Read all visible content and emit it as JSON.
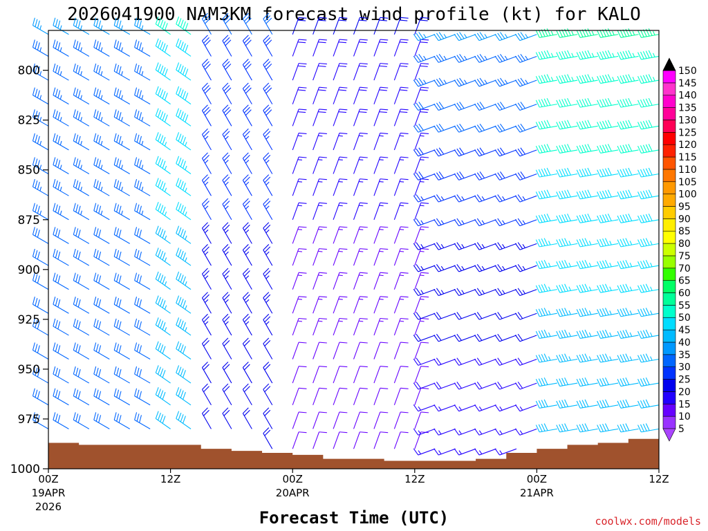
{
  "chart_data": {
    "type": "wind-barb-time-height",
    "title": "2026041900 NAM3KM forecast wind profile (kt) for KALO",
    "xlabel": "Forecast Time (UTC)",
    "ylabel": "",
    "credit": "coolwx.com/models",
    "units": "kt",
    "ylim": [
      1000,
      780
    ],
    "y_ticks": [
      800,
      825,
      850,
      875,
      900,
      925,
      950,
      975,
      1000
    ],
    "x_hours_range": [
      0,
      60
    ],
    "x_ticks": [
      {
        "hour": 0,
        "label": "00Z",
        "date": "19APR",
        "year": "2026"
      },
      {
        "hour": 12,
        "label": "12Z",
        "date": "",
        "year": ""
      },
      {
        "hour": 24,
        "label": "00Z",
        "date": "20APR",
        "year": ""
      },
      {
        "hour": 36,
        "label": "12Z",
        "date": "",
        "year": ""
      },
      {
        "hour": 48,
        "label": "00Z",
        "date": "21APR",
        "year": ""
      },
      {
        "hour": 60,
        "label": "12Z",
        "date": "",
        "year": ""
      }
    ],
    "colorbar": {
      "levels": [
        5,
        10,
        15,
        20,
        25,
        30,
        35,
        40,
        45,
        50,
        55,
        60,
        65,
        70,
        75,
        80,
        85,
        90,
        95,
        100,
        105,
        110,
        115,
        120,
        125,
        130,
        135,
        140,
        145,
        150
      ],
      "colors": [
        "#9933ff",
        "#6600ff",
        "#2200ff",
        "#0000ee",
        "#0033ff",
        "#0066ff",
        "#0099ff",
        "#00bbff",
        "#00ddff",
        "#00ffcc",
        "#00ff99",
        "#00ff66",
        "#33ff00",
        "#99ff00",
        "#ccff00",
        "#ffff00",
        "#ffee00",
        "#ffcc00",
        "#ffaa00",
        "#ff9900",
        "#ff7700",
        "#ff5500",
        "#ff2200",
        "#ff0000",
        "#ff0055",
        "#ff0099",
        "#ff00cc",
        "#ff33cc",
        "#ff00ff"
      ],
      "under_color": "#aa44ff",
      "over_color": "#000000"
    },
    "surface_pressure_hPa": [
      {
        "hour": 0,
        "p": 987
      },
      {
        "hour": 3,
        "p": 988
      },
      {
        "hour": 6,
        "p": 988
      },
      {
        "hour": 9,
        "p": 988
      },
      {
        "hour": 12,
        "p": 988
      },
      {
        "hour": 15,
        "p": 990
      },
      {
        "hour": 18,
        "p": 991
      },
      {
        "hour": 21,
        "p": 992
      },
      {
        "hour": 24,
        "p": 993
      },
      {
        "hour": 27,
        "p": 995
      },
      {
        "hour": 30,
        "p": 995
      },
      {
        "hour": 33,
        "p": 996
      },
      {
        "hour": 36,
        "p": 996
      },
      {
        "hour": 39,
        "p": 996
      },
      {
        "hour": 42,
        "p": 995
      },
      {
        "hour": 45,
        "p": 992
      },
      {
        "hour": 48,
        "p": 990
      },
      {
        "hour": 51,
        "p": 988
      },
      {
        "hour": 54,
        "p": 987
      },
      {
        "hour": 57,
        "p": 985
      },
      {
        "hour": 60,
        "p": 984
      }
    ],
    "surface_color": "#a0522d",
    "barb_levels_hPa": [
      782,
      793,
      805,
      817,
      828,
      840,
      852,
      863,
      875,
      887,
      898,
      910,
      922,
      933,
      945,
      957,
      968,
      980,
      990
    ],
    "barb_hours": [
      0,
      2,
      4,
      6,
      8,
      10,
      12,
      14,
      16,
      18,
      20,
      22,
      24,
      26,
      28,
      30,
      32,
      34,
      36,
      38,
      40,
      42,
      44,
      46,
      48,
      50,
      52,
      54,
      56,
      58,
      60
    ],
    "wind_regimes": [
      {
        "hours": [
          0,
          10
        ],
        "dir_deg": 300,
        "speed_kt": [
          30,
          35
        ]
      },
      {
        "hours": [
          12,
          14
        ],
        "dir_deg": 305,
        "speed_kt": [
          40,
          50
        ]
      },
      {
        "hours": [
          16,
          22
        ],
        "dir_deg": 330,
        "speed_kt": [
          20,
          30
        ]
      },
      {
        "hours": [
          24,
          36
        ],
        "dir_deg": 20,
        "speed_kt": [
          10,
          20
        ]
      },
      {
        "hours": [
          38,
          48
        ],
        "dir_deg": 250,
        "speed_kt": [
          15,
          35
        ]
      },
      {
        "hours": [
          50,
          60
        ],
        "dir_deg": 260,
        "speed_kt": [
          40,
          55
        ]
      }
    ]
  }
}
